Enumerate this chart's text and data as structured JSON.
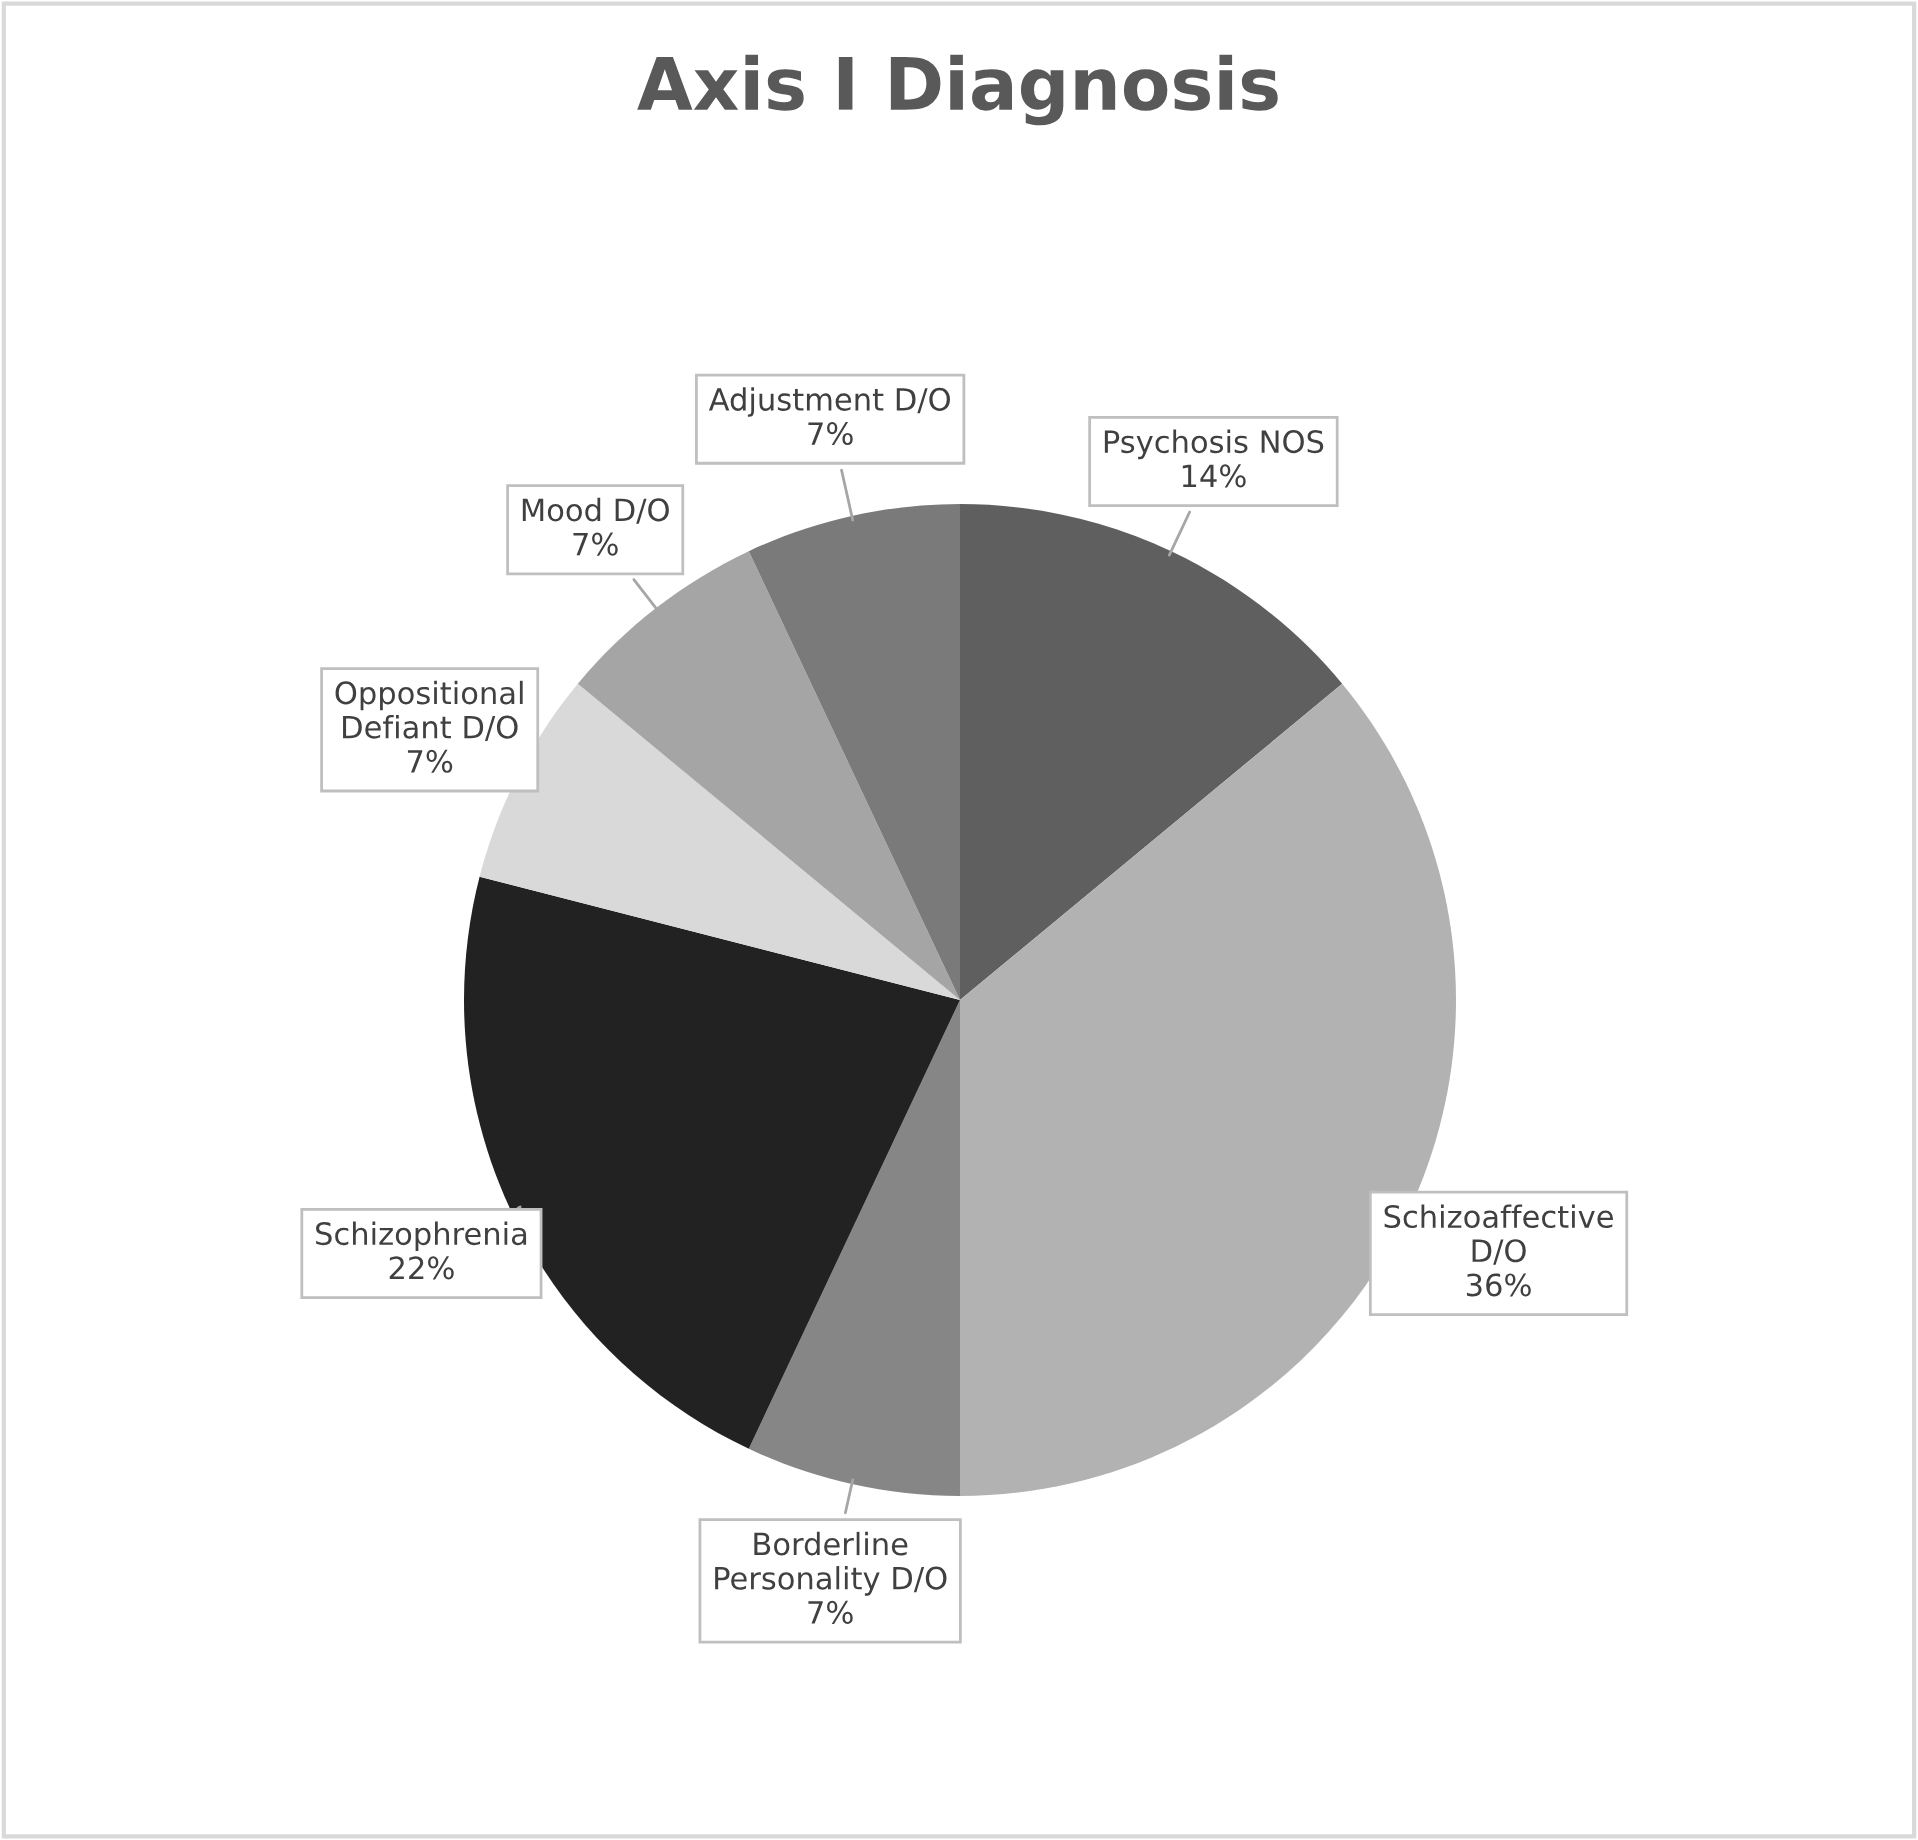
{
  "chart_data": {
    "type": "pie",
    "title": "Axis I Diagnosis",
    "categories": [
      "Psychosis NOS",
      "Schizoaffective\nD/O",
      "Borderline\nPersonality D/O",
      "Schizophrenia",
      "Oppositional\nDefiant D/O",
      "Mood D/O",
      "Adjustment D/O"
    ],
    "values": [
      14,
      36,
      7,
      22,
      7,
      7,
      7
    ],
    "value_labels": [
      "14%",
      "36%",
      "7%",
      "22%",
      "7%",
      "7%",
      "7%"
    ],
    "colors": [
      "#5f5f5f",
      "#b2b2b2",
      "#868686",
      "#222222",
      "#d9d9d9",
      "#a5a5a5",
      "#7a7a7a"
    ],
    "legend": false
  }
}
